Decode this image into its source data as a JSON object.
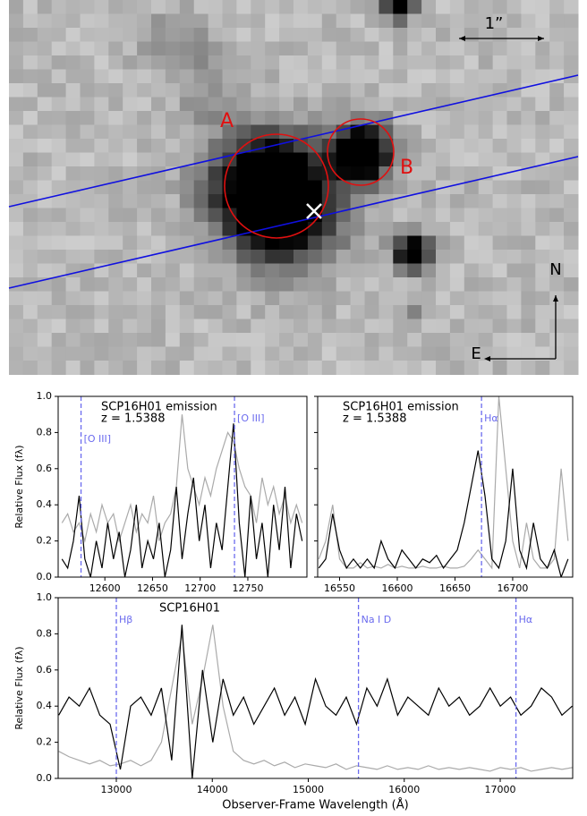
{
  "image": {
    "labels": {
      "scale": "1”",
      "a": "A",
      "b": "B",
      "north": "N",
      "east": "E"
    }
  },
  "chart_data": [
    {
      "type": "line",
      "annotations": [
        "SCP16H01 emission",
        "z = 1.5388"
      ],
      "ylabel": "Relative Flux (fλ)",
      "x": [
        12555,
        12561,
        12567,
        12573,
        12579,
        12585,
        12591,
        12597,
        12603,
        12609,
        12615,
        12621,
        12627,
        12633,
        12639,
        12645,
        12651,
        12657,
        12663,
        12669,
        12675,
        12681,
        12687,
        12693,
        12699,
        12705,
        12711,
        12717,
        12723,
        12729,
        12735,
        12741,
        12747,
        12753,
        12759,
        12765,
        12771,
        12777,
        12783,
        12789,
        12795,
        12801,
        12807
      ],
      "series": [
        {
          "color": "#aaaaaa",
          "values": [
            0.3,
            0.35,
            0.25,
            0.3,
            0.2,
            0.35,
            0.25,
            0.4,
            0.3,
            0.35,
            0.2,
            0.3,
            0.4,
            0.25,
            0.35,
            0.3,
            0.45,
            0.2,
            0.3,
            0.35,
            0.5,
            0.9,
            0.6,
            0.5,
            0.4,
            0.55,
            0.45,
            0.6,
            0.7,
            0.8,
            0.75,
            0.6,
            0.5,
            0.45,
            0.3,
            0.55,
            0.4,
            0.5,
            0.35,
            0.45,
            0.3,
            0.4,
            0.3
          ]
        },
        {
          "color": "#000000",
          "values": [
            0.1,
            0.05,
            0.2,
            0.45,
            0.1,
            0.0,
            0.2,
            0.05,
            0.3,
            0.1,
            0.25,
            0.0,
            0.15,
            0.4,
            0.05,
            0.2,
            0.1,
            0.3,
            0.0,
            0.15,
            0.5,
            0.1,
            0.35,
            0.55,
            0.2,
            0.4,
            0.05,
            0.3,
            0.15,
            0.5,
            0.85,
            0.3,
            0.0,
            0.45,
            0.1,
            0.3,
            0.0,
            0.4,
            0.15,
            0.5,
            0.05,
            0.35,
            0.2
          ]
        }
      ],
      "vlines": [
        {
          "x": 12575,
          "label": "[O III]"
        },
        {
          "x": 12736,
          "label": "[O III]"
        }
      ],
      "vline_color": "#6b6bee",
      "xlim": [
        12551,
        12812
      ],
      "xticks": [
        12600,
        12650,
        12700,
        12750
      ],
      "ylim": [
        0,
        1
      ],
      "yticks": [
        {
          "value": 0,
          "label": "0.0"
        },
        0.2,
        0.4,
        0.6,
        0.8,
        {
          "value": 1,
          "label": "1.0"
        }
      ]
    },
    {
      "type": "line",
      "annotations": [
        "SCP16H01 emission",
        "z = 1.5388"
      ],
      "x": [
        16532,
        16538,
        16544,
        16550,
        16556,
        16562,
        16568,
        16574,
        16580,
        16586,
        16592,
        16598,
        16604,
        16610,
        16616,
        16622,
        16628,
        16634,
        16640,
        16646,
        16652,
        16658,
        16664,
        16670,
        16676,
        16682,
        16688,
        16694,
        16700,
        16706,
        16712,
        16718,
        16724,
        16730,
        16736,
        16742,
        16748
      ],
      "series": [
        {
          "color": "#aaaaaa",
          "values": [
            0.1,
            0.2,
            0.4,
            0.1,
            0.05,
            0.05,
            0.08,
            0.05,
            0.06,
            0.05,
            0.07,
            0.05,
            0.06,
            0.05,
            0.05,
            0.06,
            0.05,
            0.05,
            0.06,
            0.05,
            0.05,
            0.06,
            0.1,
            0.15,
            0.1,
            0.05,
            1.0,
            0.6,
            0.2,
            0.05,
            0.3,
            0.1,
            0.05,
            0.05,
            0.1,
            0.6,
            0.2
          ]
        },
        {
          "color": "#000000",
          "values": [
            0.05,
            0.1,
            0.35,
            0.15,
            0.05,
            0.1,
            0.05,
            0.1,
            0.05,
            0.2,
            0.1,
            0.05,
            0.15,
            0.1,
            0.05,
            0.1,
            0.08,
            0.12,
            0.05,
            0.1,
            0.15,
            0.3,
            0.5,
            0.7,
            0.45,
            0.1,
            0.05,
            0.2,
            0.6,
            0.15,
            0.05,
            0.3,
            0.1,
            0.05,
            0.15,
            0.0,
            0.1
          ]
        }
      ],
      "vlines": [
        {
          "x": 16673,
          "label": "Hα"
        }
      ],
      "vline_color": "#6b6bee",
      "xlim": [
        16531,
        16752
      ],
      "xticks": [
        16550,
        16600,
        16650,
        16700
      ],
      "ylim": [
        0,
        1
      ],
      "yticks": [
        0,
        0.2,
        0.4,
        0.6,
        0.8,
        1
      ]
    },
    {
      "type": "line",
      "annotations": [
        "SCP16H01"
      ],
      "ylabel": "Relative Flux (fλ)",
      "xlabel": "Observer-Frame Wavelength (Å)",
      "x": [
        12400,
        12507,
        12614,
        12721,
        12828,
        12935,
        13042,
        13149,
        13256,
        13363,
        13470,
        13577,
        13684,
        13791,
        13898,
        14005,
        14112,
        14219,
        14326,
        14433,
        14540,
        14647,
        14754,
        14861,
        14968,
        15075,
        15182,
        15289,
        15396,
        15503,
        15610,
        15717,
        15824,
        15931,
        16038,
        16145,
        16252,
        16359,
        16466,
        16573,
        16680,
        16787,
        16894,
        17001,
        17108,
        17215,
        17322,
        17429,
        17536,
        17643,
        17750
      ],
      "series": [
        {
          "color": "#aaaaaa",
          "values": [
            0.15,
            0.12,
            0.1,
            0.08,
            0.1,
            0.07,
            0.08,
            0.1,
            0.07,
            0.1,
            0.2,
            0.5,
            0.8,
            0.3,
            0.55,
            0.85,
            0.4,
            0.15,
            0.1,
            0.08,
            0.1,
            0.07,
            0.09,
            0.06,
            0.08,
            0.07,
            0.06,
            0.08,
            0.05,
            0.07,
            0.06,
            0.05,
            0.07,
            0.05,
            0.06,
            0.05,
            0.07,
            0.05,
            0.06,
            0.05,
            0.06,
            0.05,
            0.04,
            0.06,
            0.05,
            0.06,
            0.04,
            0.05,
            0.06,
            0.05,
            0.06
          ]
        },
        {
          "color": "#000000",
          "values": [
            0.35,
            0.45,
            0.4,
            0.5,
            0.35,
            0.3,
            0.05,
            0.4,
            0.45,
            0.35,
            0.5,
            0.1,
            0.85,
            0.0,
            0.6,
            0.2,
            0.55,
            0.35,
            0.45,
            0.3,
            0.4,
            0.5,
            0.35,
            0.45,
            0.3,
            0.55,
            0.4,
            0.35,
            0.45,
            0.3,
            0.5,
            0.4,
            0.55,
            0.35,
            0.45,
            0.4,
            0.35,
            0.5,
            0.4,
            0.45,
            0.35,
            0.4,
            0.5,
            0.4,
            0.45,
            0.35,
            0.4,
            0.5,
            0.45,
            0.35,
            0.4
          ]
        }
      ],
      "vlines": [
        {
          "x": 13000,
          "label": "Hβ"
        },
        {
          "x": 15523,
          "label": "Na I D"
        },
        {
          "x": 17164,
          "label": "Hα"
        }
      ],
      "vline_color": "#6b6bee",
      "xlim": [
        12394,
        17755
      ],
      "xticks": [
        13000,
        14000,
        15000,
        16000,
        17000
      ],
      "ylim": [
        0,
        1
      ],
      "yticks": [
        {
          "value": 0,
          "label": "0.0"
        },
        0.2,
        0.4,
        0.6,
        0.8,
        {
          "value": 1,
          "label": "1.0"
        }
      ]
    }
  ]
}
